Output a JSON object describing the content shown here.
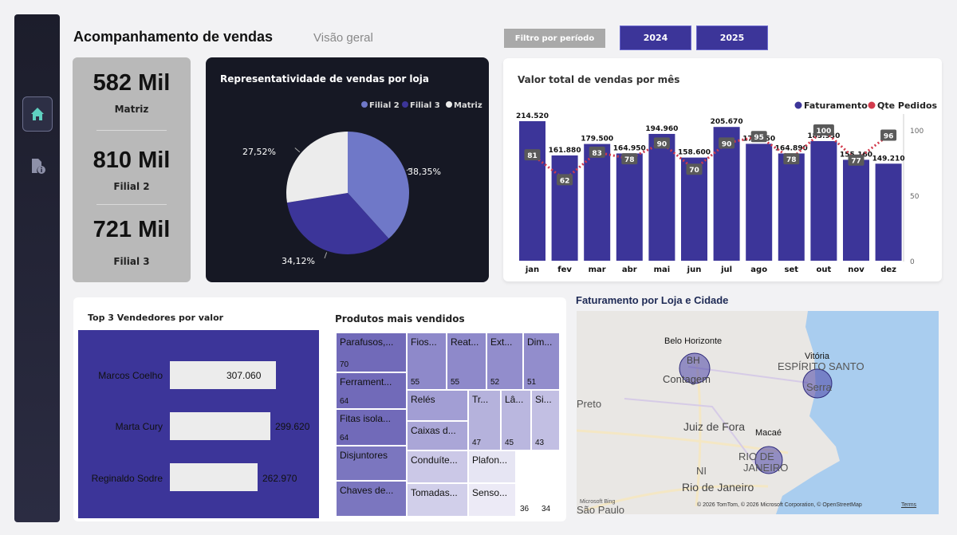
{
  "page": {
    "title": "Acompanhamento de vendas",
    "subtitle": "Visão geral"
  },
  "sidebar": {
    "items": [
      {
        "icon": "home-icon",
        "active": true
      },
      {
        "icon": "document-info-icon",
        "active": false
      }
    ]
  },
  "filters": {
    "label": "Filtro por período",
    "years": [
      "2024",
      "2025"
    ]
  },
  "kpis": [
    {
      "value": "582 Mil",
      "label": "Matriz"
    },
    {
      "value": "810 Mil",
      "label": "Filial 2"
    },
    {
      "value": "721 Mil",
      "label": "Filial 3"
    }
  ],
  "colors": {
    "accent": "#3c3599",
    "filial2": "#6f78c8",
    "filial3": "#3c3599",
    "matriz": "#ececec",
    "pedidos": "#d23a4c"
  },
  "pie_chart": {
    "title": "Representatividade de vendas por loja"
  },
  "bar_chart": {
    "title": "Valor total de vendas por mês"
  },
  "sales": {
    "title": "Top 3 Vendedores por valor",
    "sellers": [
      {
        "name": "Marcos Coelho",
        "value": "307.060",
        "amount": 307060
      },
      {
        "name": "Marta Cury",
        "value": "299.620",
        "amount": 299620
      },
      {
        "name": "Reginaldo Sodre",
        "value": "262.970",
        "amount": 262970
      }
    ]
  },
  "products": {
    "title": "Produtos mais vendidos",
    "items": [
      {
        "name": "Parafusos,...",
        "value": "70"
      },
      {
        "name": "Ferrament...",
        "value": "64"
      },
      {
        "name": "Fitas isola...",
        "value": "64"
      },
      {
        "name": "Disjuntores",
        "value": ""
      },
      {
        "name": "Chaves de...",
        "value": ""
      },
      {
        "name": "Fios...",
        "value": "55"
      },
      {
        "name": "Reat...",
        "value": "55"
      },
      {
        "name": "Ext...",
        "value": "52"
      },
      {
        "name": "Dim...",
        "value": "51"
      },
      {
        "name": "Relés",
        "value": ""
      },
      {
        "name": "Tr...",
        "value": "47"
      },
      {
        "name": "Lâ...",
        "value": "45"
      },
      {
        "name": "Si...",
        "value": "43"
      },
      {
        "name": "Caixas d...",
        "value": ""
      },
      {
        "name": "Conduíte...",
        "value": ""
      },
      {
        "name": "Plafon...",
        "value": ""
      },
      {
        "name": "Tomadas...",
        "value": ""
      },
      {
        "name": "Senso...",
        "value": ""
      },
      {
        "name": "",
        "value": "36"
      },
      {
        "name": "",
        "value": "34"
      }
    ]
  },
  "map": {
    "title": "Faturamento por Loja e Cidade",
    "labels": {
      "bh": "Belo Horizonte",
      "bh_abbr": "BH",
      "contagem": "Contagem",
      "vitoria": "Vitória",
      "espirito_santo": "ESPÍRITO SANTO",
      "serra": "Serra",
      "preto": "Preto",
      "juiz_de_fora": "Juiz de Fora",
      "macae": "Macaé",
      "rio_estado": "RIO DE",
      "rio_estado2": "JANEIRO",
      "ni": "NI",
      "rio_de_janeiro": "Rio de Janeiro",
      "sao_paulo": "São Paulo"
    },
    "attribution": "© 2026 TomTom, © 2026 Microsoft Corporation, © OpenStreetMap",
    "terms": "Terms",
    "bing": "Microsoft Bing"
  },
  "chart_data": [
    {
      "type": "pie",
      "title": "Representatividade de vendas por loja",
      "legend": "top-right",
      "series": [
        {
          "name": "Filial 2",
          "value": 38.35,
          "label": "38,35%"
        },
        {
          "name": "Filial 3",
          "value": 34.12,
          "label": "34,12%"
        },
        {
          "name": "Matriz",
          "value": 27.52,
          "label": "27,52%"
        }
      ]
    },
    {
      "type": "bar",
      "title": "Valor total de vendas por mês",
      "legend": "top-right",
      "categories": [
        "jan",
        "fev",
        "mar",
        "abr",
        "mai",
        "jun",
        "jul",
        "ago",
        "set",
        "out",
        "nov",
        "dez"
      ],
      "series": [
        {
          "name": "Faturamento",
          "type": "bar",
          "values": [
            214520,
            161880,
            179500,
            164950,
            194960,
            158600,
            205670,
            179750,
            164890,
            183930,
            155160,
            149210
          ],
          "labels": [
            "214.520",
            "161.880",
            "179.500",
            "164.950",
            "194.960",
            "158.600",
            "205.670",
            "179.750",
            "164.890",
            "183.930",
            "155.160",
            "149.210"
          ]
        },
        {
          "name": "Qte Pedidos",
          "type": "line",
          "values": [
            81,
            62,
            83,
            78,
            90,
            70,
            90,
            95,
            78,
            100,
            77,
            96
          ]
        }
      ],
      "y2_ticks": [
        "100",
        "50",
        "0"
      ],
      "y2lim": [
        0,
        100
      ],
      "ylim": [
        0,
        240000
      ]
    }
  ]
}
